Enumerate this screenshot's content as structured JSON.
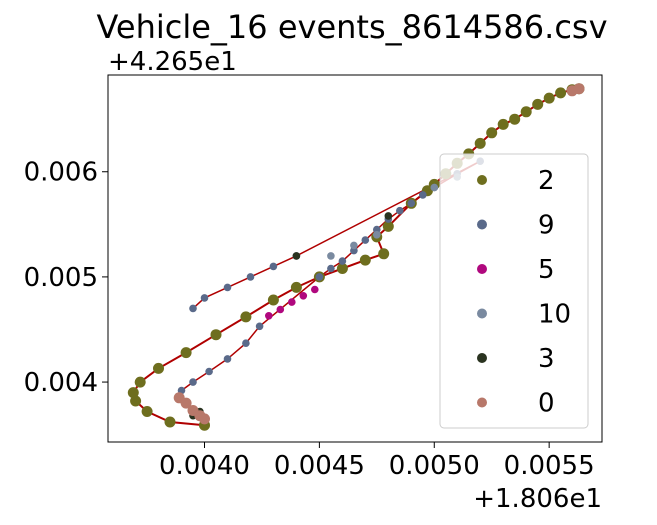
{
  "chart_data": {
    "type": "scatter",
    "title": "Vehicle_16 events_8614586.csv",
    "xlabel": "",
    "ylabel": "",
    "x_offset_label": "+1.806e1",
    "y_offset_label": "+4.265e1",
    "x_offset": 18.06,
    "y_offset": 42.65,
    "xlim": [
      0.00358,
      0.00573
    ],
    "ylim": [
      0.00343,
      0.00692
    ],
    "x_ticks": [
      0.004,
      0.0045,
      0.005,
      0.0055
    ],
    "x_tick_labels": [
      "0.0040",
      "0.0045",
      "0.0050",
      "0.0055"
    ],
    "y_ticks": [
      0.004,
      0.005,
      0.006
    ],
    "y_tick_labels": [
      "0.004",
      "0.005",
      "0.006"
    ],
    "grid": false,
    "legend_position": "lower right",
    "trajectory_line_color": "#b00000",
    "series": [
      {
        "name": "2",
        "color": "#6e6e1e",
        "size": "large",
        "x": [
          0.004,
          0.00385,
          0.00375,
          0.0037,
          0.00369,
          0.00372,
          0.0038,
          0.00392,
          0.00405,
          0.00418,
          0.0043,
          0.0044,
          0.0045,
          0.0046,
          0.0047,
          0.00478,
          0.00475,
          0.0048,
          0.0049,
          0.00497,
          0.005,
          0.00505,
          0.0051,
          0.00515,
          0.0052,
          0.00525,
          0.0053,
          0.00535,
          0.0054,
          0.00545,
          0.0055,
          0.00555,
          0.0056,
          0.00563
        ],
        "y": [
          0.00359,
          0.00362,
          0.00372,
          0.00382,
          0.0039,
          0.004,
          0.00413,
          0.00428,
          0.00445,
          0.00462,
          0.00478,
          0.0049,
          0.005,
          0.00508,
          0.00516,
          0.00522,
          0.00538,
          0.00548,
          0.0057,
          0.00582,
          0.00588,
          0.00598,
          0.00608,
          0.00617,
          0.00627,
          0.00637,
          0.00645,
          0.0065,
          0.00657,
          0.00664,
          0.0067,
          0.00675,
          0.00678,
          0.00679
        ]
      },
      {
        "name": "9",
        "color": "#5a6a8a",
        "size": "small",
        "x": [
          0.0039,
          0.00395,
          0.00402,
          0.0041,
          0.00418,
          0.00424,
          0.0045,
          0.00455,
          0.0046,
          0.00465,
          0.0047,
          0.00475,
          0.0048,
          0.00485,
          0.0049,
          0.00495,
          0.005,
          0.0051,
          0.0052,
          0.0044,
          0.0043,
          0.0042,
          0.0041,
          0.004,
          0.00395
        ],
        "y": [
          0.00392,
          0.004,
          0.0041,
          0.00422,
          0.00437,
          0.00453,
          0.005,
          0.00508,
          0.00515,
          0.00525,
          0.00535,
          0.00545,
          0.00555,
          0.00563,
          0.0057,
          0.00578,
          0.00585,
          0.00598,
          0.0061,
          0.0052,
          0.0051,
          0.005,
          0.0049,
          0.0048,
          0.0047
        ]
      },
      {
        "name": "5",
        "color": "#b0087e",
        "size": "small",
        "x": [
          0.00428,
          0.00433,
          0.00438,
          0.00443,
          0.00448
        ],
        "y": [
          0.00463,
          0.00469,
          0.00476,
          0.00482,
          0.00488
        ]
      },
      {
        "name": "10",
        "color": "#7a8aa0",
        "size": "small",
        "x": [
          0.00455,
          0.00465,
          0.00475,
          0.005,
          0.0051
        ],
        "y": [
          0.0052,
          0.0053,
          0.0054,
          0.00585,
          0.00595
        ]
      },
      {
        "name": "3",
        "color": "#2a3320",
        "size": "small",
        "x": [
          0.00395,
          0.00398,
          0.0044,
          0.0048
        ],
        "y": [
          0.00368,
          0.00372,
          0.0052,
          0.00558
        ]
      },
      {
        "name": "0",
        "color": "#b8786a",
        "size": "large",
        "x": [
          0.00389,
          0.00392,
          0.00395,
          0.00398,
          0.004,
          0.00563,
          0.0056
        ],
        "y": [
          0.00385,
          0.0038,
          0.00373,
          0.00368,
          0.00365,
          0.00679,
          0.00677
        ]
      }
    ],
    "legend": [
      "2",
      "9",
      "5",
      "10",
      "3",
      "0"
    ]
  }
}
